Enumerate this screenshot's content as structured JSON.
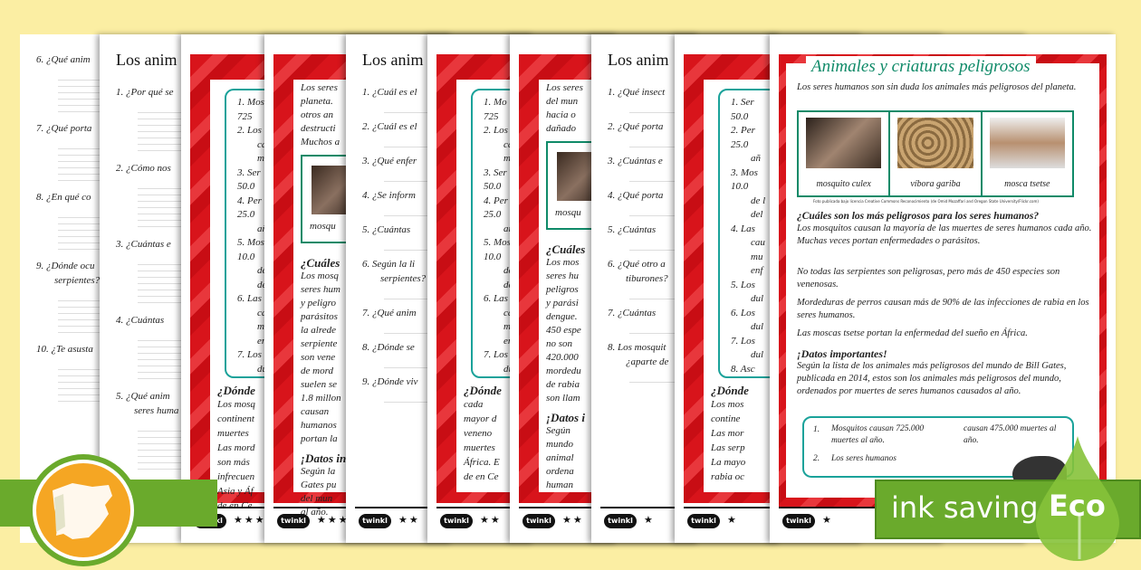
{
  "colors": {
    "background": "#fbeea3",
    "frame_red": "#d8141b",
    "title_green": "#0f8a68",
    "box_teal": "#1aa29a",
    "eco_green": "#6aaa2c"
  },
  "pages": [
    {
      "questions": [
        "6. ¿Qué anim",
        "7. ¿Qué porta",
        "8. ¿En qué co",
        "9. ¿Dónde ocu",
        "serpientes?",
        "10. ¿Te asusta"
      ]
    },
    {
      "title": "Los anim",
      "questions": [
        "1. ¿Por qué se",
        "2. ¿Cómo nos",
        "3. ¿Cuántas e",
        "4. ¿Cuántas",
        "5. ¿Qué anim",
        "seres huma"
      ],
      "stars": "★★★"
    },
    {
      "list": [
        "1. Mos",
        "725",
        "2. Los",
        "cau",
        "mu",
        "3. Ser",
        "50.0",
        "4. Per",
        "25.0",
        "añ",
        "5. Mos",
        "10.0",
        "de l",
        "del",
        "6. Las",
        "cau",
        "mu",
        "enf",
        "7. Los",
        "dul"
      ],
      "text": [
        "¿Dónde",
        "Los mosq",
        "continent",
        "muertes",
        "Las mord",
        "son más",
        "infrecuen",
        "Asia y Áf",
        "de en Ce"
      ],
      "logo": "twinkl",
      "stars": "★★★"
    },
    {
      "title": "Ani",
      "text": [
        "Los seres",
        "planeta.",
        "otros an",
        "destructi",
        "Muchos a"
      ],
      "caption": "mosqu",
      "body": [
        "¿Cuáles",
        "Los mosq",
        "seres hum",
        "y peligro",
        "parásitos",
        "la alrede",
        "serpiente",
        "son vene",
        "de mord",
        "suelen se",
        "1.8 millon",
        "causan",
        "humanos",
        "portan la"
      ],
      "facts": [
        "¡Datos in",
        "Según la",
        "Gates pu",
        "del mun",
        "al año."
      ],
      "logo": "twinkl",
      "stars": "★★★"
    },
    {
      "title": "Los anim",
      "questions": [
        "1. ¿Cuál es el",
        "2. ¿Cuál es el",
        "3. ¿Qué enfer",
        "4. ¿Se inform",
        "5. ¿Cuántas",
        "6. Según la li",
        "serpientes?",
        "7. ¿Qué anim",
        "8. ¿Dónde se",
        "9. ¿Dónde viv"
      ],
      "logo": "twinkl",
      "stars": "★★"
    },
    {
      "list": [
        "1. Mo",
        "725",
        "2. Los",
        "cau",
        "mu",
        "3. Ser",
        "50.0",
        "4. Per",
        "25.0",
        "añ",
        "5. Mos",
        "10.0",
        "de l",
        "del",
        "6. Las",
        "cau",
        "mu",
        "enf",
        "7. Los",
        "dul"
      ],
      "text": [
        "¿Dónde",
        "cada",
        "mayor d",
        "veneno",
        "muertes",
        "África. E",
        "de en Ce"
      ],
      "logo": "twinkl",
      "stars": "★★"
    },
    {
      "title": "Ani",
      "text": [
        "Los seres",
        "del mun",
        "hacia o",
        "dañado"
      ],
      "caption": "mosqu",
      "body": [
        "¿Cuáles",
        "Los mos",
        "seres hu",
        "peligros",
        "y parási",
        "dengue.",
        "450 espe",
        "no son",
        "420.000",
        "mordedu",
        "de rabia",
        "son llam"
      ],
      "facts": [
        "¡Datos i",
        "Según",
        "mundo",
        "animal",
        "ordena",
        "human"
      ],
      "logo": "twinkl",
      "stars": "★★"
    },
    {
      "title": "Los anim",
      "questions": [
        "1. ¿Qué insect",
        "2. ¿Qué porta",
        "3. ¿Cuántas e",
        "4. ¿Qué porta",
        "5. ¿Cuántas",
        "6. ¿Qué otro a",
        "tiburones?",
        "7. ¿Cuántas",
        "8. Los mosquit",
        "¿aparte de"
      ],
      "logo": "twinkl",
      "stars": "★"
    },
    {
      "list": [
        "1. Ser",
        "50.0",
        "2. Per",
        "25.0",
        "añ",
        "3. Mos",
        "10.0",
        "de l",
        "del",
        "4. Las",
        "cau",
        "mu",
        "enf",
        "5. Los",
        "dul",
        "6. Los",
        "dul",
        "7. Los",
        "dul",
        "8. Asc"
      ],
      "text": [
        "¿Dónde",
        "Los mos",
        "contine",
        "Las mor",
        "Las serp",
        "La mayo",
        "rabia oc"
      ],
      "logo": "twinkl",
      "stars": "★"
    },
    {
      "title": "Animales y criaturas peligrosos",
      "intro": "Los seres humanos son sin duda los animales más peligrosos del planeta.",
      "animals": [
        {
          "name": "mosquito culex"
        },
        {
          "name": "víbora gariba"
        },
        {
          "name": "mosca tsetse"
        }
      ],
      "credit": "Foto publicada bajo licencia Creative Commons Reconocimiento (de Omid Mozaffari and Oregon State University/Flickr.com)",
      "heading": "¿Cuáles son los más peligrosos para los seres humanos?",
      "paragraphs": [
        "Los mosquitos causan la mayoría de las muertes de seres humanos cada año. Muchas veces portan enfermedades o parásitos.",
        "No todas las serpientes son peligrosas, pero más de 450 especies son venenosas.",
        "Mordeduras de perros causan más de 90% de las infecciones de rabia en los seres humanos.",
        "Las moscas tsetse portan la enfermedad del sueño en África."
      ],
      "facts_heading": "¡Datos importantes!",
      "facts": "Según la lista de los animales más peligrosos del mundo de Bill Gates, publicada en 2014, estos son los animales más peligrosos del mundo, ordenados por muertes de seres humanos causados al año.",
      "list": [
        {
          "num": "1.",
          "text": "Mosquitos causan 725.000 muertes al año."
        },
        {
          "num": "2.",
          "text": "Los seres humanos"
        },
        {
          "num": "",
          "text": "causan 475.000 muertes al año."
        }
      ],
      "logo": "twinkl",
      "stars": "★"
    }
  ],
  "badge": {
    "label": "ink saving",
    "eco": "Eco"
  },
  "region_icon": "spain-map-icon"
}
